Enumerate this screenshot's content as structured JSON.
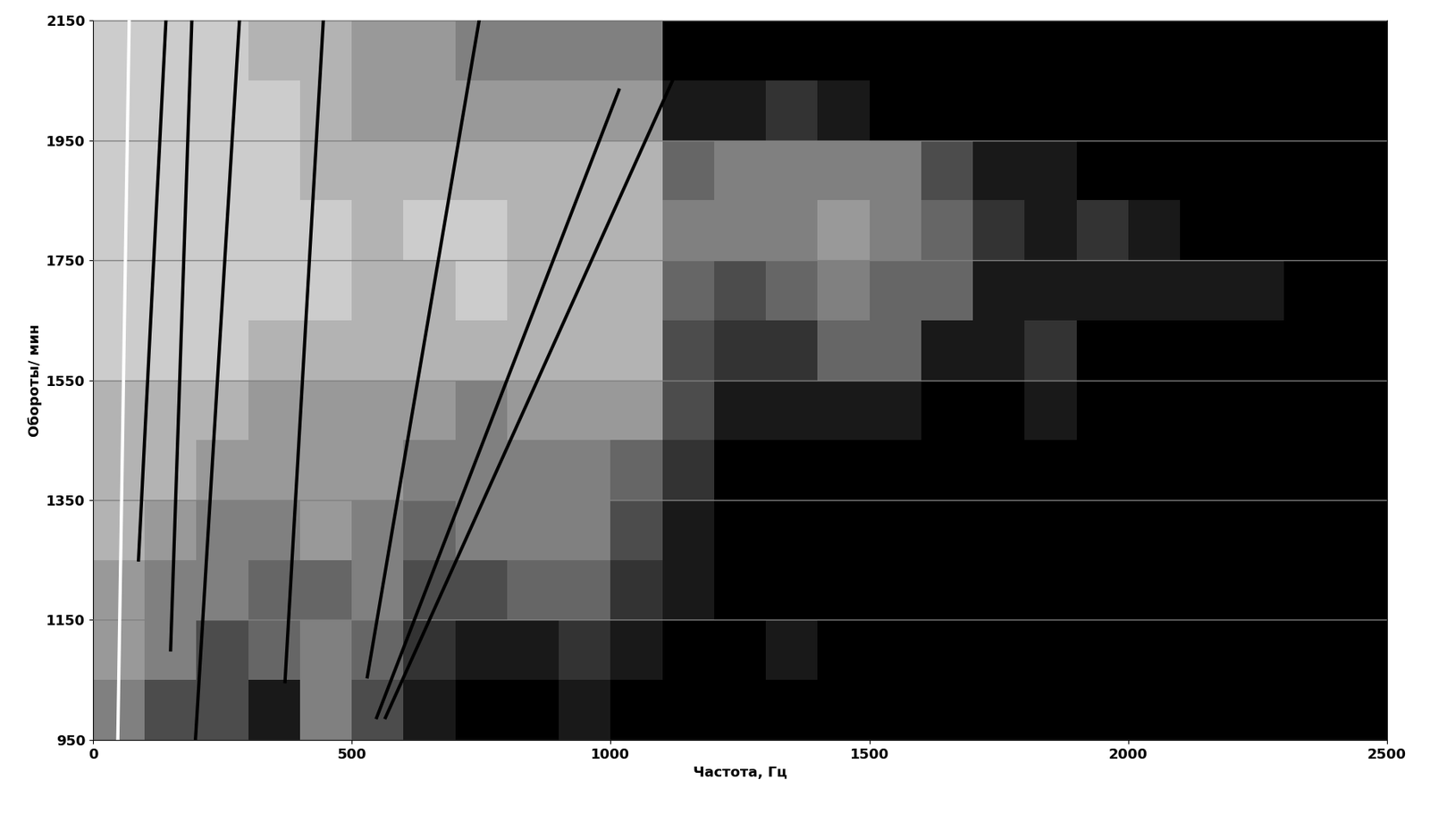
{
  "chart_data": {
    "type": "heatmap",
    "xlabel": "Частота, Гц",
    "ylabel": "Обороты/ мин",
    "xlim": [
      0,
      2500
    ],
    "xticks": [
      0,
      500,
      1000,
      1500,
      2000,
      2500
    ],
    "ylim": [
      950,
      2150
    ],
    "yticks": [
      950,
      1150,
      1350,
      1550,
      1750,
      1950,
      2150
    ],
    "grid": true,
    "x_bins": [
      0,
      100,
      200,
      300,
      400,
      500,
      600,
      700,
      800,
      900,
      1000,
      1100,
      1200,
      1300,
      1400,
      1500,
      1600,
      1700,
      1800,
      1900,
      2000,
      2100,
      2200,
      2300,
      2400,
      2500
    ],
    "y_bins": [
      950,
      1050,
      1150,
      1250,
      1350,
      1450,
      1550,
      1650,
      1750,
      1850,
      1950,
      2050,
      2150
    ],
    "color_range": [
      0,
      10
    ],
    "cells": [
      [
        5,
        3,
        3,
        1,
        5,
        3,
        1,
        0,
        0,
        1,
        0,
        0,
        0,
        0,
        0,
        0,
        0,
        0,
        0,
        0,
        0,
        0,
        0,
        0,
        0
      ],
      [
        6,
        5,
        3,
        4,
        5,
        4,
        2,
        1,
        1,
        2,
        1,
        0,
        0,
        1,
        0,
        0,
        0,
        0,
        0,
        0,
        0,
        0,
        0,
        0,
        0
      ],
      [
        6,
        5,
        5,
        4,
        4,
        5,
        3,
        3,
        4,
        4,
        2,
        1,
        0,
        0,
        0,
        0,
        0,
        0,
        0,
        0,
        0,
        0,
        0,
        0,
        0
      ],
      [
        7,
        6,
        5,
        5,
        6,
        5,
        4,
        5,
        5,
        5,
        3,
        1,
        0,
        0,
        0,
        0,
        0,
        0,
        0,
        0,
        0,
        0,
        0,
        0,
        0
      ],
      [
        7,
        7,
        6,
        6,
        6,
        6,
        5,
        5,
        5,
        5,
        4,
        2,
        0,
        0,
        0,
        0,
        0,
        0,
        0,
        0,
        0,
        0,
        0,
        0,
        0
      ],
      [
        7,
        7,
        7,
        6,
        6,
        6,
        6,
        5,
        6,
        6,
        6,
        3,
        1,
        1,
        1,
        1,
        0,
        0,
        1,
        0,
        0,
        0,
        0,
        0,
        0
      ],
      [
        8,
        8,
        8,
        7,
        7,
        7,
        7,
        7,
        7,
        7,
        7,
        3,
        2,
        2,
        4,
        4,
        1,
        1,
        2,
        0,
        0,
        0,
        0,
        0,
        0
      ],
      [
        8,
        8,
        8,
        8,
        8,
        7,
        7,
        8,
        7,
        7,
        7,
        4,
        3,
        4,
        5,
        4,
        4,
        1,
        1,
        1,
        1,
        1,
        1,
        0,
        0
      ],
      [
        8,
        8,
        8,
        8,
        8,
        7,
        8,
        8,
        7,
        7,
        7,
        5,
        5,
        5,
        6,
        5,
        4,
        2,
        1,
        2,
        1,
        0,
        0,
        0,
        0
      ],
      [
        8,
        8,
        8,
        8,
        7,
        7,
        7,
        7,
        7,
        7,
        7,
        4,
        5,
        5,
        5,
        5,
        3,
        1,
        1,
        0,
        0,
        0,
        0,
        0,
        0
      ],
      [
        8,
        8,
        8,
        8,
        7,
        6,
        6,
        6,
        6,
        6,
        6,
        1,
        1,
        2,
        1,
        0,
        0,
        0,
        0,
        0,
        0,
        0,
        0,
        0,
        0
      ],
      [
        8,
        8,
        8,
        7,
        7,
        6,
        6,
        5,
        5,
        5,
        5,
        0,
        0,
        0,
        0,
        0,
        0,
        0,
        0,
        0,
        0,
        0,
        0,
        0,
        0
      ]
    ],
    "series": [
      {
        "type": "line",
        "color": "#ffffff",
        "x": [
          48,
          70
        ],
        "values": [
          950,
          2150
        ]
      },
      {
        "type": "line",
        "color": "#000000",
        "x": [
          88,
          141
        ],
        "values": [
          1250,
          2150
        ]
      },
      {
        "type": "line",
        "color": "#000000",
        "x": [
          150,
          191
        ],
        "values": [
          1100,
          2150
        ]
      },
      {
        "type": "line",
        "color": "#000000",
        "x": [
          198,
          283
        ],
        "values": [
          950,
          2150
        ]
      },
      {
        "type": "line",
        "color": "#000000",
        "x": [
          371,
          445
        ],
        "values": [
          1047,
          2150
        ]
      },
      {
        "type": "line",
        "color": "#000000",
        "x": [
          530,
          746
        ],
        "values": [
          1055,
          2150
        ]
      },
      {
        "type": "line",
        "color": "#000000",
        "x": [
          548,
          1016
        ],
        "values": [
          987,
          2034
        ]
      },
      {
        "type": "line",
        "color": "#000000",
        "x": [
          565,
          1127
        ],
        "values": [
          987,
          2064
        ]
      }
    ]
  }
}
